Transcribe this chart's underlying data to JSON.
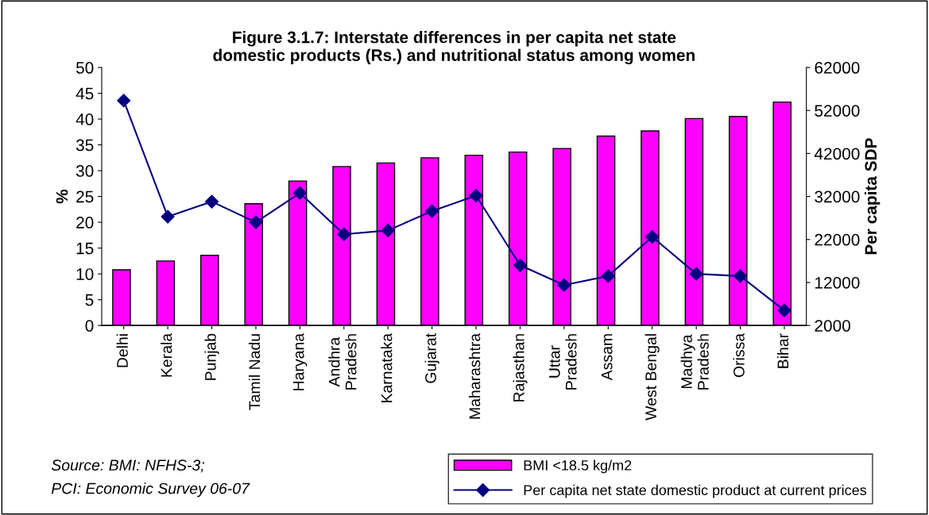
{
  "chart_data": {
    "type": "bar",
    "title": "Figure 3.1.7: Interstate differences in per capita net state\ndomestic products (Rs.) and nutritional status among women",
    "ylabel": "%",
    "y2label": "Per capita SDP",
    "categories": [
      "Delhi",
      "Kerala",
      "Punjab",
      "Tamil Nadu",
      "Haryana",
      "Andhra\nPradesh",
      "Karnataka",
      "Gujarat",
      "Maharashtra",
      "Rajasthan",
      "Uttar\nPradesh",
      "Assam",
      "West Bengal",
      "Madhya\nPradesh",
      "Orissa",
      "Bihar"
    ],
    "series": [
      {
        "name": "BMI <18.5 kg/m2",
        "color": "#ff00ff",
        "values": [
          10.8,
          12.5,
          13.6,
          23.6,
          28.0,
          30.8,
          31.5,
          32.5,
          33.0,
          33.6,
          34.3,
          36.7,
          37.7,
          40.1,
          40.5,
          43.3
        ]
      },
      {
        "name": "Per capita net state domestic product at current prices",
        "type": "line",
        "axis": "y2",
        "color": "#000080",
        "marker": "diamond",
        "values": [
          54300,
          27300,
          30800,
          26000,
          32800,
          23200,
          24100,
          28600,
          32200,
          16000,
          11400,
          13500,
          22600,
          14000,
          13500,
          5500
        ]
      }
    ],
    "ylim": [
      0,
      50
    ],
    "yticks": [
      0,
      5,
      10,
      15,
      20,
      25,
      30,
      35,
      40,
      45,
      50
    ],
    "y2lim": [
      2000,
      62000
    ],
    "y2ticks": [
      2000,
      12000,
      22000,
      32000,
      42000,
      52000,
      62000
    ],
    "grid": false,
    "legend": "bottom right",
    "annotations": [
      "Source: BMI: NFHS-3;\nPCI: Economic Survey 06-07"
    ]
  }
}
